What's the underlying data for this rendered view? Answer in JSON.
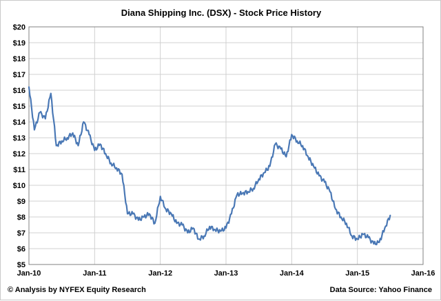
{
  "chart_data": {
    "type": "line",
    "title": "Diana Shipping Inc. (DSX) - Stock Price History",
    "xlabel": "",
    "ylabel": "",
    "ylim": [
      5,
      20
    ],
    "xlim": [
      "2010-01-01",
      "2016-01-01"
    ],
    "y_ticks": [
      "$5",
      "$6",
      "$7",
      "$8",
      "$9",
      "$10",
      "$11",
      "$12",
      "$13",
      "$14",
      "$15",
      "$16",
      "$17",
      "$18",
      "$19",
      "$20"
    ],
    "x_ticks": [
      "Jan-10",
      "Jan-11",
      "Jan-12",
      "Jan-13",
      "Jan-14",
      "Jan-15",
      "Jan-16"
    ],
    "grid": true,
    "series_color": "#4a78b5",
    "series": [
      {
        "name": "",
        "x": [
          "2010-01",
          "2010-02",
          "2010-03",
          "2010-04",
          "2010-05",
          "2010-06",
          "2010-07",
          "2010-08",
          "2010-09",
          "2010-10",
          "2010-11",
          "2010-12",
          "2011-01",
          "2011-02",
          "2011-03",
          "2011-04",
          "2011-05",
          "2011-06",
          "2011-07",
          "2011-08",
          "2011-09",
          "2011-10",
          "2011-11",
          "2011-12",
          "2012-01",
          "2012-02",
          "2012-03",
          "2012-04",
          "2012-05",
          "2012-06",
          "2012-07",
          "2012-08",
          "2012-09",
          "2012-10",
          "2012-11",
          "2012-12",
          "2013-01",
          "2013-02",
          "2013-03",
          "2013-04",
          "2013-05",
          "2013-06",
          "2013-07",
          "2013-08",
          "2013-09",
          "2013-10",
          "2013-11",
          "2013-12",
          "2014-01",
          "2014-02",
          "2014-03",
          "2014-04",
          "2014-05",
          "2014-06",
          "2014-07",
          "2014-08",
          "2014-09",
          "2014-10",
          "2014-11",
          "2014-12",
          "2015-01",
          "2015-02",
          "2015-03",
          "2015-04",
          "2015-05",
          "2015-06",
          "2015-07"
        ],
        "values": [
          16.2,
          13.5,
          14.6,
          14.2,
          15.8,
          12.5,
          12.8,
          13.0,
          13.3,
          12.5,
          14.0,
          13.2,
          12.2,
          12.6,
          12.0,
          11.4,
          11.1,
          10.7,
          8.2,
          8.2,
          7.8,
          8.0,
          8.2,
          7.6,
          9.3,
          8.5,
          8.2,
          7.6,
          7.5,
          7.0,
          7.3,
          6.6,
          6.8,
          7.4,
          7.2,
          7.1,
          7.3,
          8.2,
          9.4,
          9.5,
          9.6,
          9.8,
          10.4,
          10.8,
          11.2,
          12.6,
          12.3,
          11.8,
          13.2,
          12.8,
          12.5,
          11.8,
          11.2,
          10.6,
          10.2,
          9.6,
          8.5,
          8.0,
          7.6,
          6.8,
          6.6,
          6.9,
          6.7,
          6.3,
          6.4,
          7.3,
          8.1
        ]
      }
    ]
  },
  "footer": {
    "left": "© Analysis by NYFEX Equity Research",
    "right": "Data Source: Yahoo Finance"
  }
}
